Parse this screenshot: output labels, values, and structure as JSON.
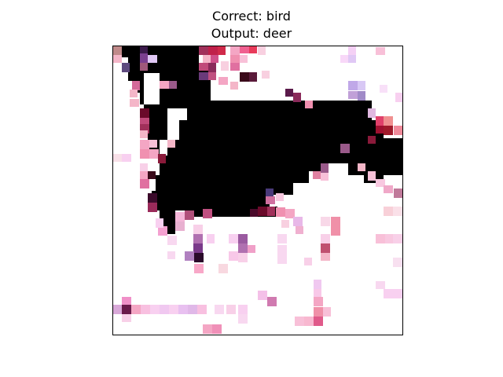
{
  "figure": {
    "title_line1": "Correct: bird",
    "title_line2": "Output: deer"
  },
  "image": {
    "description_colors": {
      "background": "#ffffff",
      "dark": "#000000",
      "pink": "#f4a6c4",
      "magenta": "#c2185b",
      "purple": "#7b3f8f",
      "lavender": "#e0c8f5"
    }
  }
}
